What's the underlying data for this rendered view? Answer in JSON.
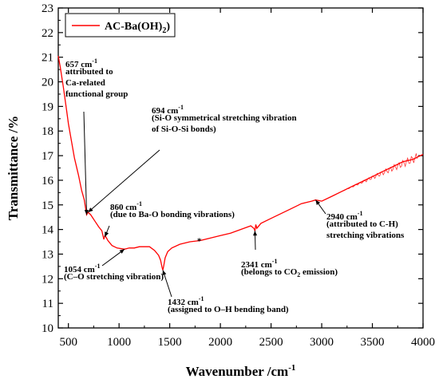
{
  "chart_data": {
    "type": "line",
    "xlabel": "Wavenumber /cm",
    "xlabel_sup": "-1",
    "ylabel": "Transmittance /%",
    "xlim": [
      400,
      4000
    ],
    "ylim": [
      10,
      23
    ],
    "xticks": [
      500,
      1000,
      1500,
      2000,
      2500,
      3000,
      3500,
      4000
    ],
    "yticks": [
      10,
      11,
      12,
      13,
      14,
      15,
      16,
      17,
      18,
      19,
      20,
      21,
      22,
      23
    ],
    "grid": false,
    "legend_position": "top-left",
    "series": [
      {
        "name": "AC-Ba(OH)",
        "name_sub": "2",
        "color": "#ff0000",
        "x": [
          400,
          420,
          450,
          480,
          500,
          530,
          560,
          600,
          630,
          657,
          680,
          694,
          720,
          760,
          800,
          830,
          850,
          860,
          870,
          890,
          930,
          980,
          1054,
          1100,
          1150,
          1200,
          1250,
          1300,
          1350,
          1390,
          1410,
          1425,
          1432,
          1440,
          1455,
          1480,
          1520,
          1600,
          1700,
          1800,
          1900,
          2000,
          2100,
          2200,
          2300,
          2330,
          2341,
          2350,
          2360,
          2400,
          2500,
          2600,
          2700,
          2800,
          2900,
          2940,
          3000,
          3100,
          3200,
          3300,
          3400,
          3500,
          3600,
          3700,
          3800,
          3900,
          3950,
          4000
        ],
        "y": [
          21.05,
          20.6,
          19.8,
          18.9,
          18.3,
          17.6,
          16.9,
          16.2,
          15.6,
          15.2,
          14.6,
          14.7,
          14.6,
          14.35,
          14.1,
          13.95,
          13.6,
          13.75,
          13.7,
          13.55,
          13.35,
          13.25,
          13.2,
          13.25,
          13.25,
          13.3,
          13.3,
          13.3,
          13.15,
          12.95,
          12.75,
          12.45,
          12.35,
          12.5,
          12.85,
          13.1,
          13.25,
          13.4,
          13.5,
          13.55,
          13.65,
          13.75,
          13.85,
          14.0,
          14.15,
          14.05,
          13.95,
          14.2,
          14.05,
          14.25,
          14.45,
          14.65,
          14.85,
          15.05,
          15.15,
          15.2,
          15.15,
          15.35,
          15.55,
          15.75,
          15.95,
          16.15,
          16.35,
          16.55,
          16.75,
          16.85,
          16.95,
          17.05
        ]
      }
    ],
    "annotations": [
      {
        "lines": [
          "657 cm",
          "attributed to",
          "Ca-related",
          "functional group"
        ],
        "sup_line": 0,
        "sup": "-1",
        "target": [
          680,
          14.6
        ]
      },
      {
        "lines": [
          "694 cm",
          "(Si-O symmetrical stretching vibration",
          "of Si-O-Si bonds)"
        ],
        "sup_line": 0,
        "sup": "-1",
        "target": [
          694,
          14.7
        ]
      },
      {
        "lines": [
          "860 cm",
          "(due to Ba-O bonding vibrations)"
        ],
        "sup_line": 0,
        "sup": "-1",
        "target": [
          860,
          13.7
        ]
      },
      {
        "lines": [
          "1054 cm",
          "(C–O stretching vibration)"
        ],
        "sup_line": 0,
        "sup": "-1",
        "target": [
          1054,
          13.2
        ]
      },
      {
        "lines": [
          "1432 cm",
          "(assigned to O–H bending band)"
        ],
        "sup_line": 0,
        "sup": "-1",
        "target": [
          1432,
          12.35
        ]
      },
      {
        "lines": [
          "2341 cm",
          "(belongs to CO",
          " emission)"
        ],
        "sup_line": 0,
        "sup": "-1",
        "sub_line": 1,
        "sub": "2",
        "target": [
          2341,
          13.95
        ]
      },
      {
        "lines": [
          "2940 cm",
          "(attributed to C-H)",
          "stretching vibrations"
        ],
        "sup_line": 0,
        "sup": "-1",
        "target": [
          2940,
          15.2
        ]
      }
    ],
    "marker_text": "*"
  }
}
